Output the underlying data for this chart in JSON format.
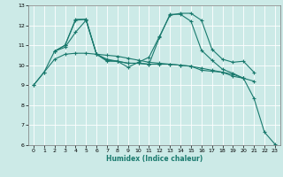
{
  "title": "",
  "xlabel": "Humidex (Indice chaleur)",
  "ylabel": "",
  "bg_color": "#cceae7",
  "grid_color": "#ffffff",
  "line_color": "#1a7a6e",
  "xlim": [
    -0.5,
    23.5
  ],
  "ylim": [
    6,
    13
  ],
  "xticks": [
    0,
    1,
    2,
    3,
    4,
    5,
    6,
    7,
    8,
    9,
    10,
    11,
    12,
    13,
    14,
    15,
    16,
    17,
    18,
    19,
    20,
    21,
    22,
    23
  ],
  "yticks": [
    6,
    7,
    8,
    9,
    10,
    11,
    12,
    13
  ],
  "lines": [
    {
      "x": [
        0,
        1,
        2,
        3,
        4,
        5,
        6,
        7,
        8,
        9,
        10,
        11,
        12,
        13,
        14,
        15,
        16,
        17,
        18,
        19,
        20,
        21
      ],
      "y": [
        9.0,
        9.65,
        10.3,
        10.55,
        10.6,
        10.6,
        10.55,
        10.5,
        10.45,
        10.35,
        10.25,
        10.15,
        10.1,
        10.05,
        10.0,
        9.95,
        9.85,
        9.75,
        9.65,
        9.55,
        9.35,
        9.2
      ]
    },
    {
      "x": [
        2,
        3,
        4,
        5,
        6,
        7,
        8,
        9,
        10,
        11,
        12,
        13,
        14,
        15,
        16,
        17,
        18,
        19,
        20
      ],
      "y": [
        10.7,
        10.9,
        11.65,
        12.25,
        10.55,
        10.2,
        10.2,
        10.1,
        10.1,
        10.05,
        10.05,
        10.05,
        10.0,
        9.95,
        9.75,
        9.7,
        9.65,
        9.45,
        9.35
      ]
    },
    {
      "x": [
        2,
        3,
        4,
        5,
        6,
        7,
        8,
        9,
        10,
        11,
        12,
        13,
        14,
        15,
        16,
        17,
        18,
        19,
        20,
        21
      ],
      "y": [
        10.7,
        11.0,
        12.25,
        12.3,
        10.55,
        10.3,
        10.2,
        9.9,
        10.15,
        10.4,
        11.45,
        12.5,
        12.6,
        12.6,
        12.25,
        10.8,
        10.3,
        10.15,
        10.2,
        9.65
      ]
    },
    {
      "x": [
        0,
        1,
        2,
        3,
        4,
        5,
        6,
        7,
        8,
        9,
        10,
        11,
        12,
        13,
        14,
        15,
        16,
        17,
        18,
        19,
        20,
        21,
        22,
        23
      ],
      "y": [
        9.0,
        9.65,
        10.7,
        11.0,
        12.3,
        12.3,
        10.55,
        10.25,
        10.2,
        10.1,
        10.1,
        10.05,
        11.4,
        12.55,
        12.55,
        12.2,
        10.75,
        10.25,
        9.8,
        9.6,
        9.35,
        8.35,
        6.65,
        6.05
      ]
    }
  ]
}
